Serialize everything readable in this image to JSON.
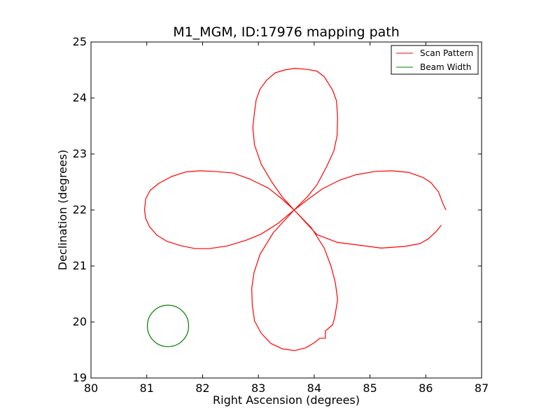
{
  "chart_data": {
    "type": "line",
    "title": "M1_MGM, ID:17976 mapping path",
    "xlabel": "Right Ascension (degrees)",
    "ylabel": "Declination (degrees)",
    "xlim": [
      80,
      87
    ],
    "ylim": [
      19,
      25
    ],
    "xticks": [
      80,
      81,
      82,
      83,
      84,
      85,
      86,
      87
    ],
    "yticks": [
      19,
      20,
      21,
      22,
      23,
      24,
      25
    ],
    "grid": false,
    "legend_position": "top-right",
    "series": [
      {
        "name": "Scan Pattern",
        "color": "#ff0000",
        "points": [
          [
            86.36,
            22.0
          ],
          [
            86.3,
            22.13
          ],
          [
            86.23,
            22.32
          ],
          [
            86.09,
            22.49
          ],
          [
            85.95,
            22.58
          ],
          [
            85.7,
            22.67
          ],
          [
            85.4,
            22.7
          ],
          [
            85.1,
            22.69
          ],
          [
            84.75,
            22.63
          ],
          [
            84.45,
            22.53
          ],
          [
            84.15,
            22.38
          ],
          [
            83.9,
            22.2
          ],
          [
            83.64,
            22.0
          ],
          [
            83.42,
            22.2
          ],
          [
            83.18,
            22.39
          ],
          [
            82.85,
            22.55
          ],
          [
            82.55,
            22.66
          ],
          [
            82.2,
            22.69
          ],
          [
            81.95,
            22.7
          ],
          [
            81.7,
            22.68
          ],
          [
            81.45,
            22.6
          ],
          [
            81.22,
            22.48
          ],
          [
            81.06,
            22.35
          ],
          [
            80.98,
            22.2
          ],
          [
            80.96,
            22.0
          ],
          [
            80.98,
            21.85
          ],
          [
            81.05,
            21.7
          ],
          [
            81.18,
            21.55
          ],
          [
            81.36,
            21.44
          ],
          [
            81.62,
            21.36
          ],
          [
            81.87,
            21.31
          ],
          [
            82.12,
            21.31
          ],
          [
            82.45,
            21.36
          ],
          [
            82.78,
            21.46
          ],
          [
            83.05,
            21.57
          ],
          [
            83.35,
            21.76
          ],
          [
            83.64,
            22.0
          ],
          [
            83.88,
            22.24
          ],
          [
            84.05,
            22.45
          ],
          [
            84.22,
            22.77
          ],
          [
            84.35,
            23.05
          ],
          [
            84.41,
            23.32
          ],
          [
            84.42,
            23.65
          ],
          [
            84.4,
            23.95
          ],
          [
            84.33,
            24.14
          ],
          [
            84.18,
            24.38
          ],
          [
            84.05,
            24.48
          ],
          [
            83.88,
            24.51
          ],
          [
            83.65,
            24.53
          ],
          [
            83.47,
            24.5
          ],
          [
            83.3,
            24.45
          ],
          [
            83.15,
            24.32
          ],
          [
            83.03,
            24.16
          ],
          [
            82.96,
            23.97
          ],
          [
            82.92,
            23.67
          ],
          [
            82.9,
            23.47
          ],
          [
            82.93,
            23.16
          ],
          [
            83.05,
            22.82
          ],
          [
            83.24,
            22.5
          ],
          [
            83.43,
            22.23
          ],
          [
            83.64,
            22.0
          ],
          [
            83.95,
            21.68
          ],
          [
            84.18,
            21.32
          ],
          [
            84.3,
            21.0
          ],
          [
            84.38,
            20.7
          ],
          [
            84.42,
            20.4
          ],
          [
            84.37,
            20.1
          ],
          [
            84.33,
            19.95
          ],
          [
            84.2,
            19.84
          ],
          [
            84.2,
            19.71
          ],
          [
            84.1,
            19.71
          ],
          [
            84.0,
            19.63
          ],
          [
            83.85,
            19.54
          ],
          [
            83.65,
            19.49
          ],
          [
            83.43,
            19.52
          ],
          [
            83.22,
            19.62
          ],
          [
            83.05,
            19.8
          ],
          [
            82.93,
            20.02
          ],
          [
            82.89,
            20.3
          ],
          [
            82.88,
            20.6
          ],
          [
            82.92,
            20.88
          ],
          [
            83.03,
            21.21
          ],
          [
            83.27,
            21.6
          ],
          [
            83.64,
            22.0
          ],
          [
            84.05,
            21.56
          ],
          [
            84.42,
            21.42
          ],
          [
            84.75,
            21.38
          ],
          [
            85.2,
            21.32
          ],
          [
            85.62,
            21.35
          ],
          [
            85.9,
            21.4
          ],
          [
            86.05,
            21.49
          ],
          [
            86.18,
            21.61
          ],
          [
            86.28,
            21.73
          ]
        ]
      },
      {
        "name": "Beam Width",
        "color": "#008000",
        "shape": "circle",
        "center": [
          81.38,
          19.93
        ],
        "radius_deg": 0.37
      }
    ]
  }
}
